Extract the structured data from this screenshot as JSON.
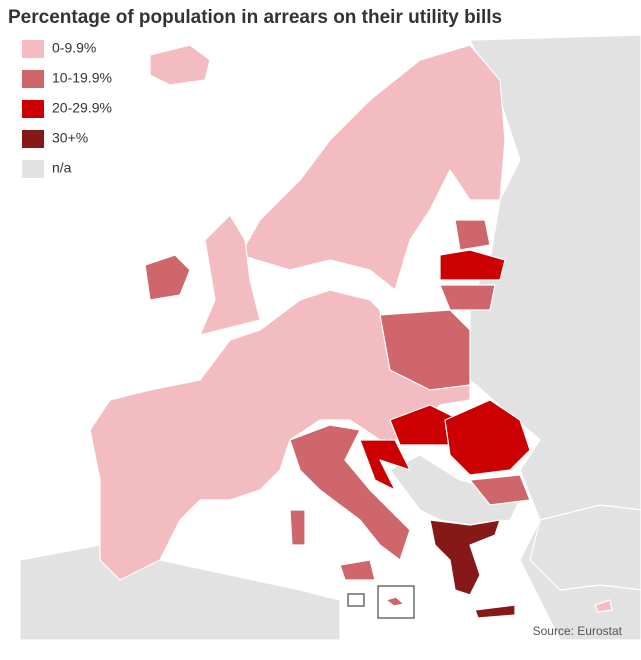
{
  "title": "Percentage of population in arrears on their utility bills",
  "legend": {
    "items": [
      {
        "label": "0-9.9%",
        "color": "#f2bcc1"
      },
      {
        "label": "10-19.9%",
        "color": "#cf666b"
      },
      {
        "label": "20-29.9%",
        "color": "#cc0000"
      },
      {
        "label": "30+%",
        "color": "#861818"
      },
      {
        "label": "n/a",
        "color": "#e2e2e2"
      }
    ]
  },
  "source": "Source: Eurostat"
}
